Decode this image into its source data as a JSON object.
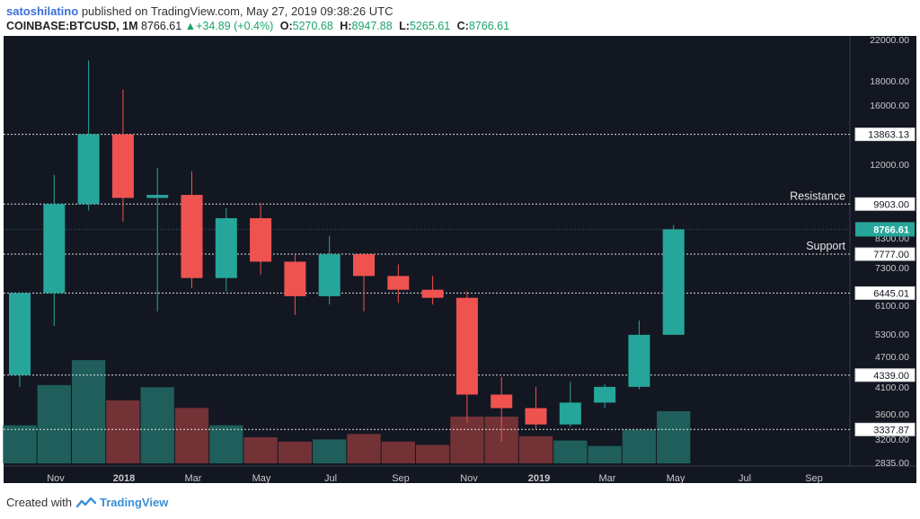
{
  "header": {
    "author": "satoshilatino",
    "published_text": "published on TradingView.com, May 27, 2019 09:38:26 UTC",
    "symbol": "COINBASE:BTCUSD, 1M",
    "last": "8766.61",
    "change": "+34.89 (+0.4%)",
    "o_label": "O:",
    "o_value": "5270.68",
    "h_label": "H:",
    "h_value": "8947.88",
    "l_label": "L:",
    "l_value": "5265.61",
    "c_label": "C:",
    "c_value": "8766.61"
  },
  "footer": {
    "created_with": "Created with",
    "brand": "TradingView"
  },
  "colors": {
    "background": "#131722",
    "up": "#26a69a",
    "down": "#ef5350",
    "vol_up": "#1f5e5b",
    "vol_down": "#733236",
    "axis_text": "#c8c8c8",
    "grid_line": "#ffffff"
  },
  "chart_data": {
    "type": "candlestick",
    "x_tick_labels": [
      "Nov",
      "2018",
      "Mar",
      "May",
      "Jul",
      "Sep",
      "Nov",
      "2019",
      "Mar",
      "May",
      "Jul",
      "Sep"
    ],
    "y_tick_labels": [
      "22000.00",
      "18000.00",
      "16000.00",
      "12000.00",
      "8300.00",
      "7300.00",
      "6100.00",
      "5300.00",
      "4700.00",
      "4100.00",
      "3600.00",
      "3200.00",
      "2835.00"
    ],
    "y_scale": "log",
    "y_range": [
      2835,
      22000
    ],
    "candles": [
      {
        "month": "2017-10",
        "open": 4339,
        "high": 6470,
        "low": 4100,
        "close": 6445
      },
      {
        "month": "2017-11",
        "open": 6445,
        "high": 11400,
        "low": 5500,
        "close": 9903
      },
      {
        "month": "2017-12",
        "open": 9903,
        "high": 19800,
        "low": 9600,
        "close": 13863
      },
      {
        "month": "2018-01",
        "open": 13863,
        "high": 17200,
        "low": 9100,
        "close": 10200
      },
      {
        "month": "2018-02",
        "open": 10200,
        "high": 11800,
        "low": 5900,
        "close": 10350
      },
      {
        "month": "2018-03",
        "open": 10350,
        "high": 11600,
        "low": 6600,
        "close": 6930
      },
      {
        "month": "2018-04",
        "open": 6930,
        "high": 9700,
        "low": 6500,
        "close": 9250
      },
      {
        "month": "2018-05",
        "open": 9250,
        "high": 9950,
        "low": 7050,
        "close": 7500
      },
      {
        "month": "2018-06",
        "open": 7500,
        "high": 7777,
        "low": 5800,
        "close": 6350
      },
      {
        "month": "2018-07",
        "open": 6350,
        "high": 8500,
        "low": 6100,
        "close": 7777
      },
      {
        "month": "2018-08",
        "open": 7777,
        "high": 7777,
        "low": 5900,
        "close": 7000
      },
      {
        "month": "2018-09",
        "open": 7000,
        "high": 7400,
        "low": 6150,
        "close": 6550
      },
      {
        "month": "2018-10",
        "open": 6550,
        "high": 7000,
        "low": 6100,
        "close": 6300
      },
      {
        "month": "2018-11",
        "open": 6300,
        "high": 6500,
        "low": 3450,
        "close": 3950
      },
      {
        "month": "2018-12",
        "open": 3950,
        "high": 4300,
        "low": 3150,
        "close": 3700
      },
      {
        "month": "2019-01",
        "open": 3700,
        "high": 4100,
        "low": 3337,
        "close": 3420
      },
      {
        "month": "2019-02",
        "open": 3420,
        "high": 4200,
        "low": 3380,
        "close": 3800
      },
      {
        "month": "2019-03",
        "open": 3800,
        "high": 4150,
        "low": 3700,
        "close": 4100
      },
      {
        "month": "2019-04",
        "open": 4100,
        "high": 5650,
        "low": 4050,
        "close": 5270
      },
      {
        "month": "2019-05",
        "open": 5270.68,
        "high": 8947.88,
        "low": 5265.61,
        "close": 8766.61
      }
    ],
    "volume_relative": [
      0.35,
      0.72,
      0.95,
      0.58,
      0.7,
      0.51,
      0.35,
      0.24,
      0.2,
      0.22,
      0.27,
      0.2,
      0.17,
      0.43,
      0.43,
      0.25,
      0.21,
      0.16,
      0.31,
      0.48
    ],
    "levels": [
      {
        "value": 13863.13,
        "label": "13863.13",
        "annotation": ""
      },
      {
        "value": 9903.0,
        "label": "9903.00",
        "annotation": "Resistance"
      },
      {
        "value": 7777.0,
        "label": "7777.00",
        "annotation": "Support"
      },
      {
        "value": 6445.01,
        "label": "6445.01",
        "annotation": ""
      },
      {
        "value": 4339.0,
        "label": "4339.00",
        "annotation": ""
      },
      {
        "value": 3337.87,
        "label": "3337.87",
        "annotation": ""
      }
    ],
    "last_price": {
      "value": 8766.61,
      "label": "8766.61"
    }
  }
}
